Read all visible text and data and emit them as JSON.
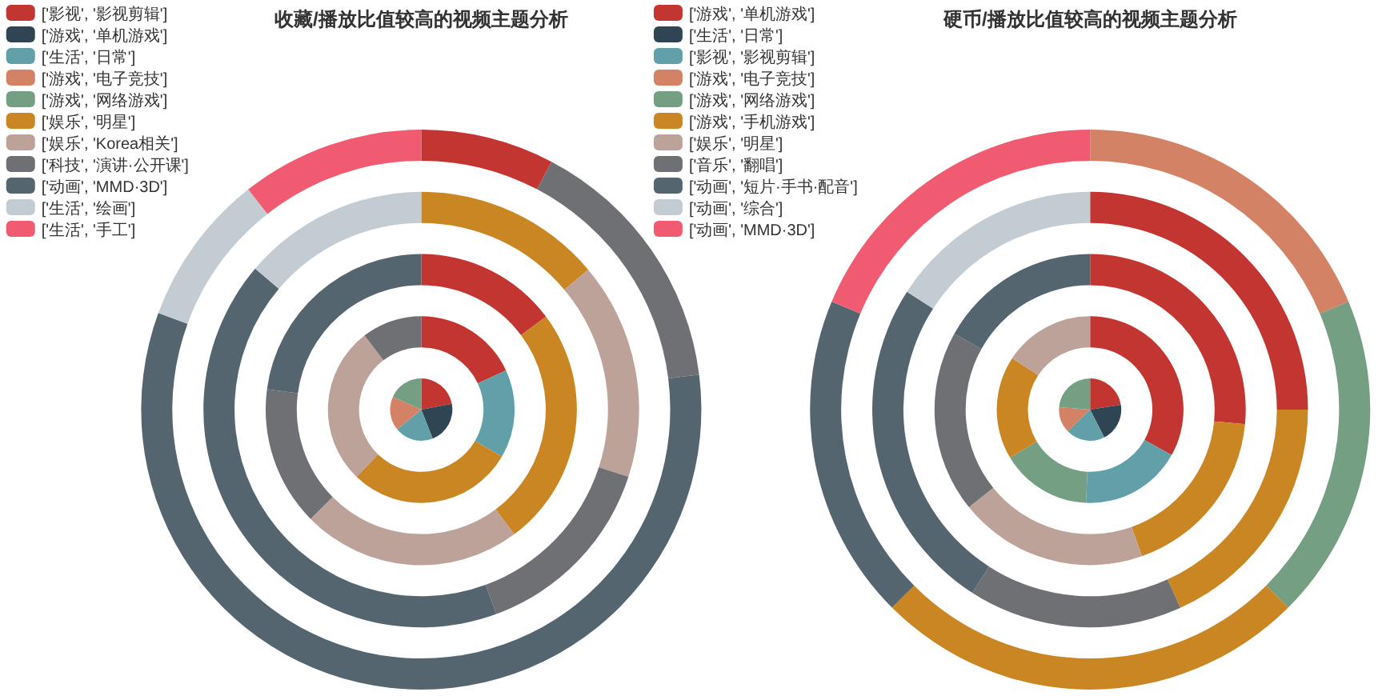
{
  "chart_data": [
    {
      "type": "donut",
      "title": "收藏/播放比值较高的视频主题分析",
      "legend": "top left",
      "categories": [
        "['影视', '影视剪辑']",
        "['游戏', '单机游戏']",
        "['生活', '日常']",
        "['游戏', '电子竞技']",
        "['游戏', '网络游戏']",
        "['娱乐', '明星']",
        "['娱乐', 'Korea相关']",
        "['科技', '演讲·公开课']",
        "['动画', 'MMD·3D']",
        "['生活', '绘画']",
        "['生活', '手工']"
      ],
      "colors": [
        "#c23531",
        "#2f4554",
        "#61a0a8",
        "#d48265",
        "#749f83",
        "#ca8622",
        "#bda29a",
        "#6e7074",
        "#546570",
        "#c4ccd3",
        "#f05b72"
      ],
      "series": [
        {
          "type": "pie",
          "values": [
            22,
            22,
            20,
            17.7,
            18.3,
            null,
            null,
            null,
            null,
            null,
            null
          ]
        },
        {
          "values": [
            18.1,
            null,
            15.3,
            null,
            null,
            28.8,
            27.4,
            10.4,
            null,
            null,
            null
          ]
        },
        {
          "values": [
            14.8,
            null,
            null,
            null,
            null,
            25,
            22.8,
            14.5,
            22.9,
            null,
            null
          ]
        },
        {
          "values": [
            null,
            null,
            null,
            null,
            null,
            13.9,
            16.1,
            14.4,
            41.8,
            13.8,
            null
          ]
        },
        {
          "values": [
            7.7,
            null,
            null,
            null,
            null,
            null,
            null,
            15.3,
            57.6,
            8.8,
            10.6
          ]
        }
      ]
    },
    {
      "type": "donut",
      "title": "硬币/播放比值较高的视频主题分析",
      "legend": "top left",
      "categories": [
        "['游戏', '单机游戏']",
        "['生活', '日常']",
        "['影视', '影视剪辑']",
        "['游戏', '电子竞技']",
        "['游戏', '网络游戏']",
        "['游戏', '手机游戏']",
        "['娱乐', '明星']",
        "['音乐', '翻唱']",
        "['动画', '短片·手书·配音']",
        "['动画', '综合']",
        "['动画', 'MMD·3D']"
      ],
      "colors": [
        "#c23531",
        "#2f4554",
        "#61a0a8",
        "#d48265",
        "#749f83",
        "#ca8622",
        "#bda29a",
        "#6e7074",
        "#546570",
        "#c4ccd3",
        "#f05b72"
      ],
      "series": [
        {
          "type": "pie",
          "values": [
            22.5,
            20,
            20.3,
            13.4,
            23.8,
            null,
            null,
            null,
            null,
            null,
            null
          ]
        },
        {
          "values": [
            33.1,
            null,
            17.6,
            null,
            15.7,
            17.9,
            15.7,
            null,
            null,
            null,
            null
          ]
        },
        {
          "values": [
            26.5,
            null,
            null,
            null,
            null,
            18.1,
            19.6,
            18.9,
            16.9,
            null,
            null
          ]
        },
        {
          "values": [
            25,
            null,
            null,
            null,
            null,
            18.2,
            null,
            15.9,
            25,
            15.9,
            null
          ]
        },
        {
          "values": [
            null,
            null,
            null,
            18.7,
            18.8,
            25,
            null,
            null,
            18.8,
            null,
            18.7
          ]
        }
      ]
    }
  ]
}
